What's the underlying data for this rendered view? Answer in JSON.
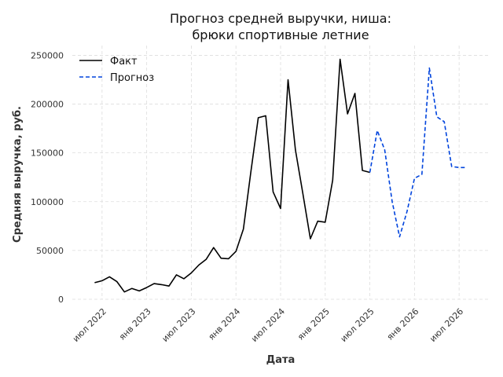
{
  "chart_data": {
    "type": "line",
    "title_lines": [
      "Прогноз средней выручки, ниша:",
      "брюки спортивные летние"
    ],
    "xlabel": "Дата",
    "ylabel": "Средняя выручка, руб.",
    "ylim": [
      0,
      260000
    ],
    "yticks": [
      0,
      50000,
      100000,
      150000,
      200000,
      250000
    ],
    "ytick_labels": [
      "0",
      "50000",
      "100000",
      "150000",
      "200000",
      "250000"
    ],
    "xticks": [
      "2022-07",
      "2023-01",
      "2023-07",
      "2024-01",
      "2024-07",
      "2025-01",
      "2025-07",
      "2026-01",
      "2026-07"
    ],
    "xtick_labels": [
      "июл 2022",
      "янв 2023",
      "июл 2023",
      "янв 2024",
      "июл 2024",
      "янв 2025",
      "июл 2025",
      "янв 2026",
      "июл 2026"
    ],
    "grid": true,
    "legend_position": "top-left",
    "series": [
      {
        "name": "Факт",
        "color": "#000000",
        "style": "solid",
        "x": [
          "2022-06",
          "2022-07",
          "2022-08",
          "2022-09",
          "2022-10",
          "2022-11",
          "2022-12",
          "2023-01",
          "2023-02",
          "2023-03",
          "2023-04",
          "2023-05",
          "2023-06",
          "2023-07",
          "2023-08",
          "2023-09",
          "2023-10",
          "2023-11",
          "2023-12",
          "2024-01",
          "2024-02",
          "2024-03",
          "2024-04",
          "2024-05",
          "2024-06",
          "2024-07",
          "2024-08",
          "2024-09",
          "2024-10",
          "2024-11",
          "2024-12",
          "2025-01",
          "2025-02",
          "2025-03",
          "2025-04",
          "2025-05",
          "2025-06",
          "2025-07"
        ],
        "values": [
          17000,
          19000,
          23000,
          18000,
          7500,
          11000,
          8500,
          12000,
          16000,
          15000,
          13500,
          25000,
          21000,
          27000,
          35000,
          41000,
          53000,
          42000,
          41500,
          49000,
          72000,
          130000,
          186000,
          188000,
          110000,
          93000,
          225000,
          153000,
          108000,
          62000,
          80000,
          79000,
          122000,
          246000,
          190000,
          211000,
          132000,
          130000
        ]
      },
      {
        "name": "Прогноз",
        "color": "#0044dd",
        "style": "dashed",
        "x": [
          "2025-07",
          "2025-08",
          "2025-09",
          "2025-10",
          "2025-11",
          "2025-12",
          "2026-01",
          "2026-02",
          "2026-03",
          "2026-04",
          "2026-05",
          "2026-06",
          "2026-07",
          "2026-08"
        ],
        "values": [
          130000,
          173000,
          153000,
          100000,
          64000,
          90000,
          124000,
          128000,
          237000,
          187000,
          182000,
          136000,
          135000,
          135000
        ]
      }
    ]
  }
}
